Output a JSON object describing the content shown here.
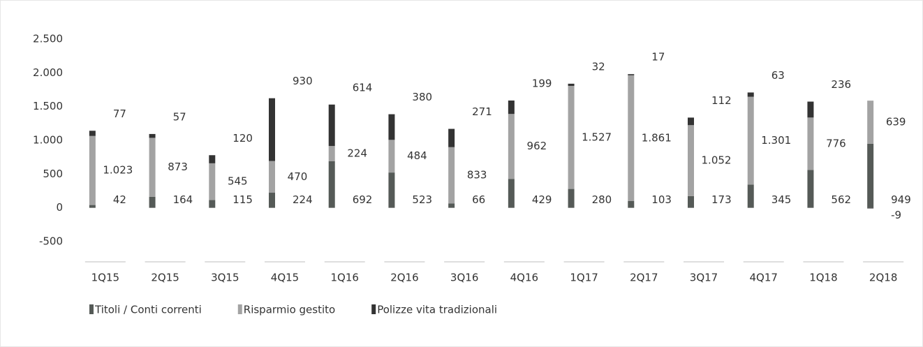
{
  "chart_data": {
    "type": "stacked_bar",
    "categories": [
      "1Q15",
      "2Q15",
      "3Q15",
      "4Q15",
      "1Q16",
      "2Q16",
      "3Q16",
      "4Q16",
      "1Q17",
      "2Q17",
      "3Q17",
      "4Q17",
      "1Q18",
      "2Q18"
    ],
    "series": [
      {
        "name": "Titoli / Conti correnti",
        "color": "#555a57",
        "values": [
          42,
          164,
          115,
          224,
          692,
          523,
          66,
          429,
          280,
          103,
          173,
          345,
          562,
          949
        ]
      },
      {
        "name": "Risparmio gestito",
        "color": "#a3a3a3",
        "values": [
          1023,
          873,
          545,
          470,
          224,
          484,
          833,
          962,
          1527,
          1861,
          1052,
          1301,
          776,
          639
        ],
        "value_labels": [
          "1.023",
          "873",
          "545",
          "470",
          "224",
          "484",
          "833",
          "962",
          "1.527",
          "1.861",
          "1.052",
          "1.301",
          "776",
          "639"
        ]
      },
      {
        "name": "Polizze vita tradizionali",
        "color": "#333333",
        "values": [
          77,
          57,
          120,
          930,
          614,
          380,
          271,
          199,
          32,
          17,
          112,
          63,
          236,
          -9
        ]
      }
    ],
    "ylim": [
      -800,
      2500
    ],
    "yticks": [
      -500,
      0,
      500,
      {
        "value": 1000,
        "label": "1.000"
      },
      {
        "value": 1500,
        "label": "1.500"
      },
      {
        "value": 2000,
        "label": "2.000"
      },
      {
        "value": 2500,
        "label": "2.500"
      }
    ],
    "legend": "bottom-left"
  }
}
